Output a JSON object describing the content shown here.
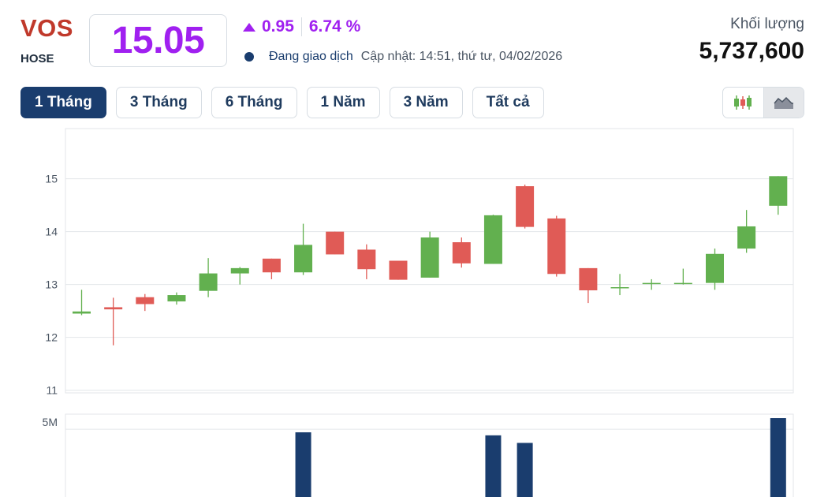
{
  "header": {
    "symbol": "VOS",
    "exchange": "HOSE",
    "price": "15.05",
    "change": "0.95",
    "change_pct": "6.74 %",
    "status": "Đang giao dịch",
    "updated": "Cập nhật: 14:51, thứ tư, 04/02/2026",
    "volume_label": "Khối lượng",
    "volume_value": "5,737,600"
  },
  "range_tabs": [
    {
      "label": "1 Tháng",
      "active": true
    },
    {
      "label": "3 Tháng",
      "active": false
    },
    {
      "label": "6 Tháng",
      "active": false
    },
    {
      "label": "1 Năm",
      "active": false
    },
    {
      "label": "3 Năm",
      "active": false
    },
    {
      "label": "Tất cả",
      "active": false
    }
  ],
  "chart_type_toggle": {
    "options": [
      "candlestick-icon",
      "area-chart-icon"
    ],
    "selected": "area-chart-icon"
  },
  "colors": {
    "up": "#62b04f",
    "down": "#e05b56",
    "volume": "#1a3d6e",
    "accent": "#a020f0",
    "symbol": "#c0392b",
    "active_tab": "#1a3d6e"
  },
  "chart_data": {
    "type": "candlestick",
    "price_axis": {
      "ticks": [
        "11",
        "12",
        "13",
        "14",
        "15"
      ],
      "range": [
        10.95,
        15.95
      ]
    },
    "volume_axis": {
      "ticks": [
        "5M"
      ],
      "tick_values": [
        5000000
      ],
      "range_top": 6000000
    },
    "candles": [
      {
        "o": 12.45,
        "h": 12.9,
        "l": 12.42,
        "c": 12.49
      },
      {
        "o": 12.57,
        "h": 12.75,
        "l": 11.85,
        "c": 12.53
      },
      {
        "o": 12.76,
        "h": 12.82,
        "l": 12.5,
        "c": 12.63
      },
      {
        "o": 12.68,
        "h": 12.85,
        "l": 12.62,
        "c": 12.8
      },
      {
        "o": 12.88,
        "h": 13.5,
        "l": 12.76,
        "c": 13.21
      },
      {
        "o": 13.21,
        "h": 13.33,
        "l": 13.0,
        "c": 13.31
      },
      {
        "o": 13.49,
        "h": 13.49,
        "l": 13.1,
        "c": 13.23
      },
      {
        "o": 13.23,
        "h": 14.15,
        "l": 13.18,
        "c": 13.75
      },
      {
        "o": 14.0,
        "h": 14.0,
        "l": 13.57,
        "c": 13.57
      },
      {
        "o": 13.66,
        "h": 13.76,
        "l": 13.1,
        "c": 13.29
      },
      {
        "o": 13.45,
        "h": 13.45,
        "l": 13.09,
        "c": 13.09
      },
      {
        "o": 13.13,
        "h": 14.0,
        "l": 13.13,
        "c": 13.89
      },
      {
        "o": 13.8,
        "h": 13.89,
        "l": 13.32,
        "c": 13.4
      },
      {
        "o": 13.39,
        "h": 14.32,
        "l": 13.39,
        "c": 14.31
      },
      {
        "o": 14.86,
        "h": 14.89,
        "l": 14.06,
        "c": 14.09
      },
      {
        "o": 14.25,
        "h": 14.3,
        "l": 13.15,
        "c": 13.2
      },
      {
        "o": 13.31,
        "h": 13.31,
        "l": 12.65,
        "c": 12.89
      },
      {
        "o": 12.95,
        "h": 13.2,
        "l": 12.8,
        "c": 12.95
      },
      {
        "o": 13.02,
        "h": 13.1,
        "l": 12.9,
        "c": 13.03
      },
      {
        "o": 13.03,
        "h": 13.3,
        "l": 13.0,
        "c": 13.03
      },
      {
        "o": 13.03,
        "h": 13.68,
        "l": 12.9,
        "c": 13.58
      },
      {
        "o": 13.68,
        "h": 14.41,
        "l": 13.6,
        "c": 14.1
      },
      {
        "o": 14.49,
        "h": 15.05,
        "l": 14.32,
        "c": 15.05
      }
    ],
    "volumes": [
      {
        "index": 7,
        "value": 4800000
      },
      {
        "index": 13,
        "value": 4600000
      },
      {
        "index": 14,
        "value": 4100000
      },
      {
        "index": 22,
        "value": 5737600
      }
    ]
  }
}
